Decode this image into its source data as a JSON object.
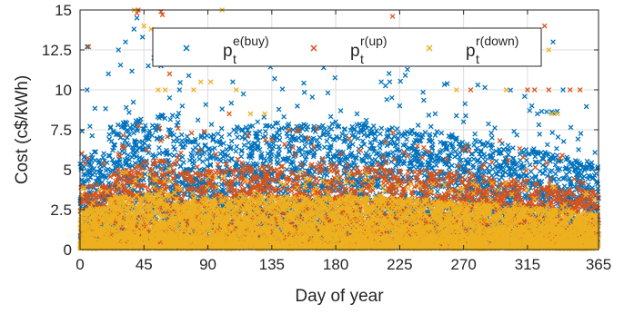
{
  "chart_data": {
    "type": "scatter",
    "title": "",
    "xlabel": "Day of year",
    "ylabel": "Cost (c$/kWh)",
    "xlim": [
      0,
      365
    ],
    "ylim": [
      0,
      15
    ],
    "xticks": [
      0,
      45,
      90,
      135,
      180,
      225,
      270,
      315,
      365
    ],
    "yticks": [
      0,
      2.5,
      5,
      7.5,
      10,
      12.5,
      15
    ],
    "xtick_labels": [
      "0",
      "45",
      "90",
      "135",
      "180",
      "225",
      "270",
      "315",
      "365"
    ],
    "ytick_labels": [
      "0",
      "2.5",
      "5",
      "7.5",
      "10",
      "12.5",
      "15"
    ],
    "grid": true,
    "legend_position": "top",
    "series": [
      {
        "name": "p_t^{e(buy)}",
        "legend_base": "p",
        "legend_sup": "e(buy)",
        "legend_sub": "t",
        "color": "#0072BD",
        "marker": "x",
        "density_per_day": 14,
        "typical_range": [
          1.0,
          6.0
        ],
        "peaks": [
          [
            5,
            10.0
          ],
          [
            5,
            12.7
          ],
          [
            20,
            11.0
          ],
          [
            27,
            12.5
          ],
          [
            32,
            13.0
          ],
          [
            38,
            13.8
          ],
          [
            40,
            14.5
          ],
          [
            44,
            13.3
          ],
          [
            48,
            11.5
          ],
          [
            52,
            12.0
          ],
          [
            57,
            11.5
          ],
          [
            63,
            9.5
          ],
          [
            70,
            10.0
          ],
          [
            100,
            8.8
          ],
          [
            125,
            8.0
          ],
          [
            150,
            7.5
          ],
          [
            180,
            8.0
          ],
          [
            195,
            8.5
          ],
          [
            212,
            10.5
          ],
          [
            218,
            10.5
          ],
          [
            225,
            9.0
          ],
          [
            250,
            8.5
          ],
          [
            270,
            8.0
          ],
          [
            290,
            7.0
          ],
          [
            318,
            9.0
          ],
          [
            322,
            8.5
          ],
          [
            333,
            13.0
          ],
          [
            340,
            10.0
          ],
          [
            360,
            5.2
          ]
        ]
      },
      {
        "name": "p_t^{r(up)}",
        "legend_base": "p",
        "legend_sup": "r(up)",
        "legend_sub": "t",
        "color": "#D95319",
        "marker": "x",
        "density_per_day": 9,
        "typical_range": [
          0.5,
          4.0
        ],
        "peaks": [
          [
            6,
            12.7
          ],
          [
            40,
            14.8
          ],
          [
            41,
            15.0
          ],
          [
            57,
            14.9
          ],
          [
            58,
            14.7
          ],
          [
            63,
            11.0
          ],
          [
            105,
            8.5
          ],
          [
            205,
            11.8
          ],
          [
            220,
            14.6
          ],
          [
            275,
            10.0
          ],
          [
            315,
            10.0
          ],
          [
            320,
            10.0
          ],
          [
            327,
            14.0
          ],
          [
            330,
            10.0
          ],
          [
            345,
            10.0
          ],
          [
            352,
            10.0
          ]
        ]
      },
      {
        "name": "p_t^{r(down)}",
        "legend_base": "p",
        "legend_sup": "r(down)",
        "legend_sub": "t",
        "color": "#EDB120",
        "marker": "x",
        "density_per_day": 14,
        "typical_range": [
          0.2,
          2.5
        ],
        "peaks": [
          [
            38,
            15.0
          ],
          [
            45,
            14.0
          ],
          [
            50,
            13.8
          ],
          [
            55,
            10.0
          ],
          [
            60,
            10.0
          ],
          [
            80,
            10.0
          ],
          [
            85,
            10.5
          ],
          [
            92,
            10.5
          ],
          [
            100,
            15.0
          ],
          [
            110,
            10.0
          ],
          [
            120,
            8.5
          ],
          [
            130,
            8.5
          ],
          [
            265,
            10.0
          ],
          [
            300,
            10.0
          ],
          [
            330,
            12.5
          ],
          [
            332,
            8.5
          ],
          [
            336,
            8.5
          ]
        ]
      }
    ]
  }
}
